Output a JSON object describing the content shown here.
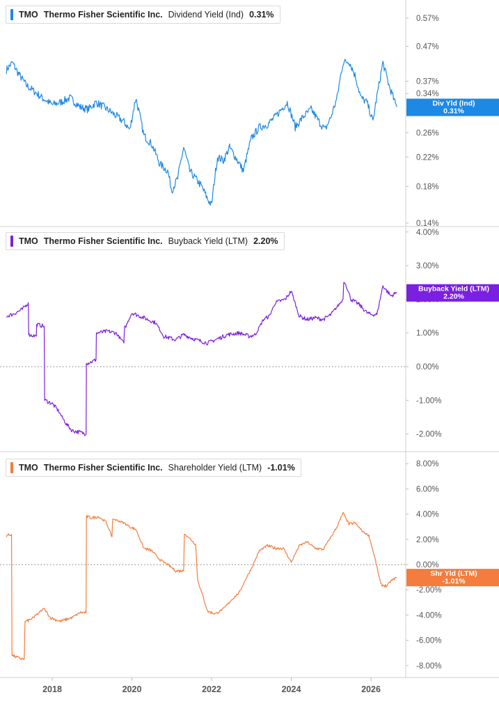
{
  "chart_data": [
    {
      "type": "line",
      "scale": "log",
      "ticker": "TMO",
      "company": "Thermo Fisher Scientific Inc.",
      "metric": "Dividend Yield (Ind)",
      "current_value_text": "0.31%",
      "badge_label": "Div Yld (Ind)",
      "badge_value": "0.31%",
      "color": "#1e88e5",
      "ylim": [
        0.135,
        0.62
      ],
      "y_ticks": [
        "0.57%",
        "0.47%",
        "0.37%",
        "0.34%",
        "0.30%",
        "0.26%",
        "0.22%",
        "0.18%",
        "0.14%"
      ],
      "y_tick_values": [
        0.57,
        0.47,
        0.37,
        0.34,
        0.3,
        0.26,
        0.22,
        0.18,
        0.14
      ],
      "zero_line": false,
      "series": [
        {
          "x": [
            2016.85,
            2017.0,
            2017.15,
            2017.35,
            2017.55,
            2017.75,
            2018.0,
            2018.2,
            2018.45,
            2018.7,
            2018.9,
            2019.1,
            2019.3,
            2019.55,
            2019.8,
            2019.95,
            2020.1,
            2020.15,
            2020.3,
            2020.5,
            2020.7,
            2020.9,
            2021.0,
            2021.15,
            2021.3,
            2021.45,
            2021.6,
            2021.75,
            2021.9,
            2022.0,
            2022.15,
            2022.3,
            2022.45,
            2022.6,
            2022.8,
            2023.0,
            2023.2,
            2023.4,
            2023.6,
            2023.75,
            2023.9,
            2024.1,
            2024.3,
            2024.5,
            2024.7,
            2024.85,
            2025.0,
            2025.15,
            2025.3,
            2025.45,
            2025.6,
            2025.75,
            2025.9,
            2026.05,
            2026.2,
            2026.3,
            2026.45,
            2026.6,
            2026.65
          ],
          "y": [
            0.4,
            0.42,
            0.39,
            0.36,
            0.345,
            0.33,
            0.315,
            0.32,
            0.33,
            0.31,
            0.305,
            0.32,
            0.31,
            0.295,
            0.28,
            0.265,
            0.33,
            0.31,
            0.255,
            0.24,
            0.21,
            0.2,
            0.175,
            0.19,
            0.235,
            0.2,
            0.19,
            0.18,
            0.165,
            0.158,
            0.22,
            0.215,
            0.235,
            0.22,
            0.2,
            0.25,
            0.27,
            0.275,
            0.29,
            0.305,
            0.32,
            0.27,
            0.29,
            0.305,
            0.28,
            0.265,
            0.29,
            0.33,
            0.42,
            0.425,
            0.385,
            0.33,
            0.32,
            0.28,
            0.36,
            0.42,
            0.36,
            0.32,
            0.31
          ]
        }
      ]
    },
    {
      "type": "line",
      "scale": "linear",
      "ticker": "TMO",
      "company": "Thermo Fisher Scientific Inc.",
      "metric": "Buyback Yield (LTM)",
      "current_value_text": "2.20%",
      "badge_label": "Buyback Yield (LTM)",
      "badge_value": "2.20%",
      "color": "#7b1fe0",
      "ylim": [
        -2.25,
        4.0
      ],
      "y_ticks": [
        "4.00%",
        "3.00%",
        "2.00%",
        "1.00%",
        "0.00%",
        "-1.00%",
        "-2.00%"
      ],
      "y_tick_values": [
        4,
        3,
        2,
        1,
        0,
        -1,
        -2
      ],
      "zero_line": true,
      "series": [
        {
          "x": [
            2016.85,
            2017.0,
            2017.25,
            2017.4,
            2017.42,
            2017.6,
            2017.62,
            2017.8,
            2017.82,
            2018.0,
            2018.15,
            2018.35,
            2018.5,
            2018.7,
            2018.85,
            2018.87,
            2019.0,
            2019.1,
            2019.12,
            2019.4,
            2019.6,
            2019.8,
            2019.85,
            2020.0,
            2020.3,
            2020.6,
            2020.8,
            2021.1,
            2021.3,
            2021.6,
            2021.9,
            2022.2,
            2022.4,
            2022.7,
            2022.95,
            2023.1,
            2023.3,
            2023.45,
            2023.6,
            2023.85,
            2024.0,
            2024.2,
            2024.4,
            2024.6,
            2024.8,
            2025.0,
            2025.1,
            2025.3,
            2025.35,
            2025.5,
            2025.7,
            2025.9,
            2026.0,
            2026.15,
            2026.3,
            2026.5,
            2026.65
          ],
          "y": [
            1.5,
            1.55,
            1.7,
            1.9,
            0.95,
            0.9,
            1.25,
            1.2,
            -1.0,
            -1.1,
            -1.3,
            -1.7,
            -1.9,
            -1.95,
            -2.0,
            0.1,
            0.15,
            0.2,
            1.0,
            1.05,
            1.0,
            0.7,
            1.2,
            1.6,
            1.45,
            1.3,
            0.9,
            0.8,
            0.95,
            0.8,
            0.7,
            0.85,
            0.95,
            1.0,
            0.9,
            0.95,
            1.4,
            1.5,
            1.9,
            2.0,
            2.25,
            1.5,
            1.4,
            1.45,
            1.4,
            1.55,
            1.7,
            2.0,
            2.5,
            2.0,
            1.85,
            1.6,
            1.55,
            1.55,
            2.4,
            2.1,
            2.2
          ]
        }
      ]
    },
    {
      "type": "line",
      "scale": "linear",
      "ticker": "TMO",
      "company": "Thermo Fisher Scientific Inc.",
      "metric": "Shareholder Yield (LTM)",
      "current_value_text": "-1.01%",
      "badge_label": "Shr Yld (LTM)",
      "badge_value": "-1.01%",
      "color": "#f47c3c",
      "ylim": [
        -8.8,
        8.6
      ],
      "y_ticks": [
        "8.00%",
        "6.00%",
        "4.00%",
        "2.00%",
        "0.00%",
        "-2.00%",
        "-4.00%",
        "-6.00%",
        "-8.00%"
      ],
      "y_tick_values": [
        8,
        6,
        4,
        2,
        0,
        -2,
        -4,
        -6,
        -8
      ],
      "zero_line": true,
      "series": [
        {
          "x": [
            2016.85,
            2016.98,
            2017.0,
            2017.15,
            2017.3,
            2017.35,
            2017.55,
            2017.6,
            2017.75,
            2017.8,
            2017.95,
            2018.2,
            2018.5,
            2018.7,
            2018.85,
            2018.87,
            2019.0,
            2019.15,
            2019.35,
            2019.5,
            2019.55,
            2019.8,
            2020.0,
            2020.1,
            2020.3,
            2020.5,
            2020.7,
            2020.9,
            2021.1,
            2021.3,
            2021.35,
            2021.6,
            2021.65,
            2021.9,
            2022.1,
            2022.3,
            2022.5,
            2022.7,
            2022.85,
            2023.0,
            2023.2,
            2023.4,
            2023.6,
            2023.8,
            2024.0,
            2024.2,
            2024.4,
            2024.6,
            2024.8,
            2025.0,
            2025.15,
            2025.3,
            2025.45,
            2025.6,
            2025.8,
            2025.95,
            2026.1,
            2026.25,
            2026.4,
            2026.5,
            2026.65
          ],
          "y": [
            2.3,
            2.4,
            -7.2,
            -7.4,
            -7.5,
            -4.5,
            -4.2,
            -4.0,
            -3.6,
            -3.5,
            -4.2,
            -4.5,
            -4.2,
            -3.8,
            -3.8,
            3.8,
            3.7,
            3.8,
            3.4,
            2.2,
            3.6,
            3.3,
            2.9,
            2.8,
            1.3,
            1.1,
            0.4,
            0.0,
            -0.5,
            -0.5,
            2.4,
            1.6,
            -1.2,
            -3.7,
            -3.9,
            -3.5,
            -2.8,
            -2.2,
            -1.2,
            -0.3,
            1.1,
            1.5,
            1.3,
            1.3,
            0.2,
            1.5,
            1.8,
            1.3,
            1.2,
            2.2,
            3.0,
            4.1,
            3.2,
            3.3,
            2.6,
            2.3,
            0.5,
            -1.6,
            -1.7,
            -1.3,
            -1.0
          ]
        }
      ]
    }
  ],
  "x_axis": {
    "tick_labels": [
      "2018",
      "2020",
      "2022",
      "2024",
      "2026"
    ],
    "tick_values": [
      2018,
      2020,
      2022,
      2024,
      2026
    ],
    "xlim": [
      2016.85,
      2026.97
    ]
  }
}
